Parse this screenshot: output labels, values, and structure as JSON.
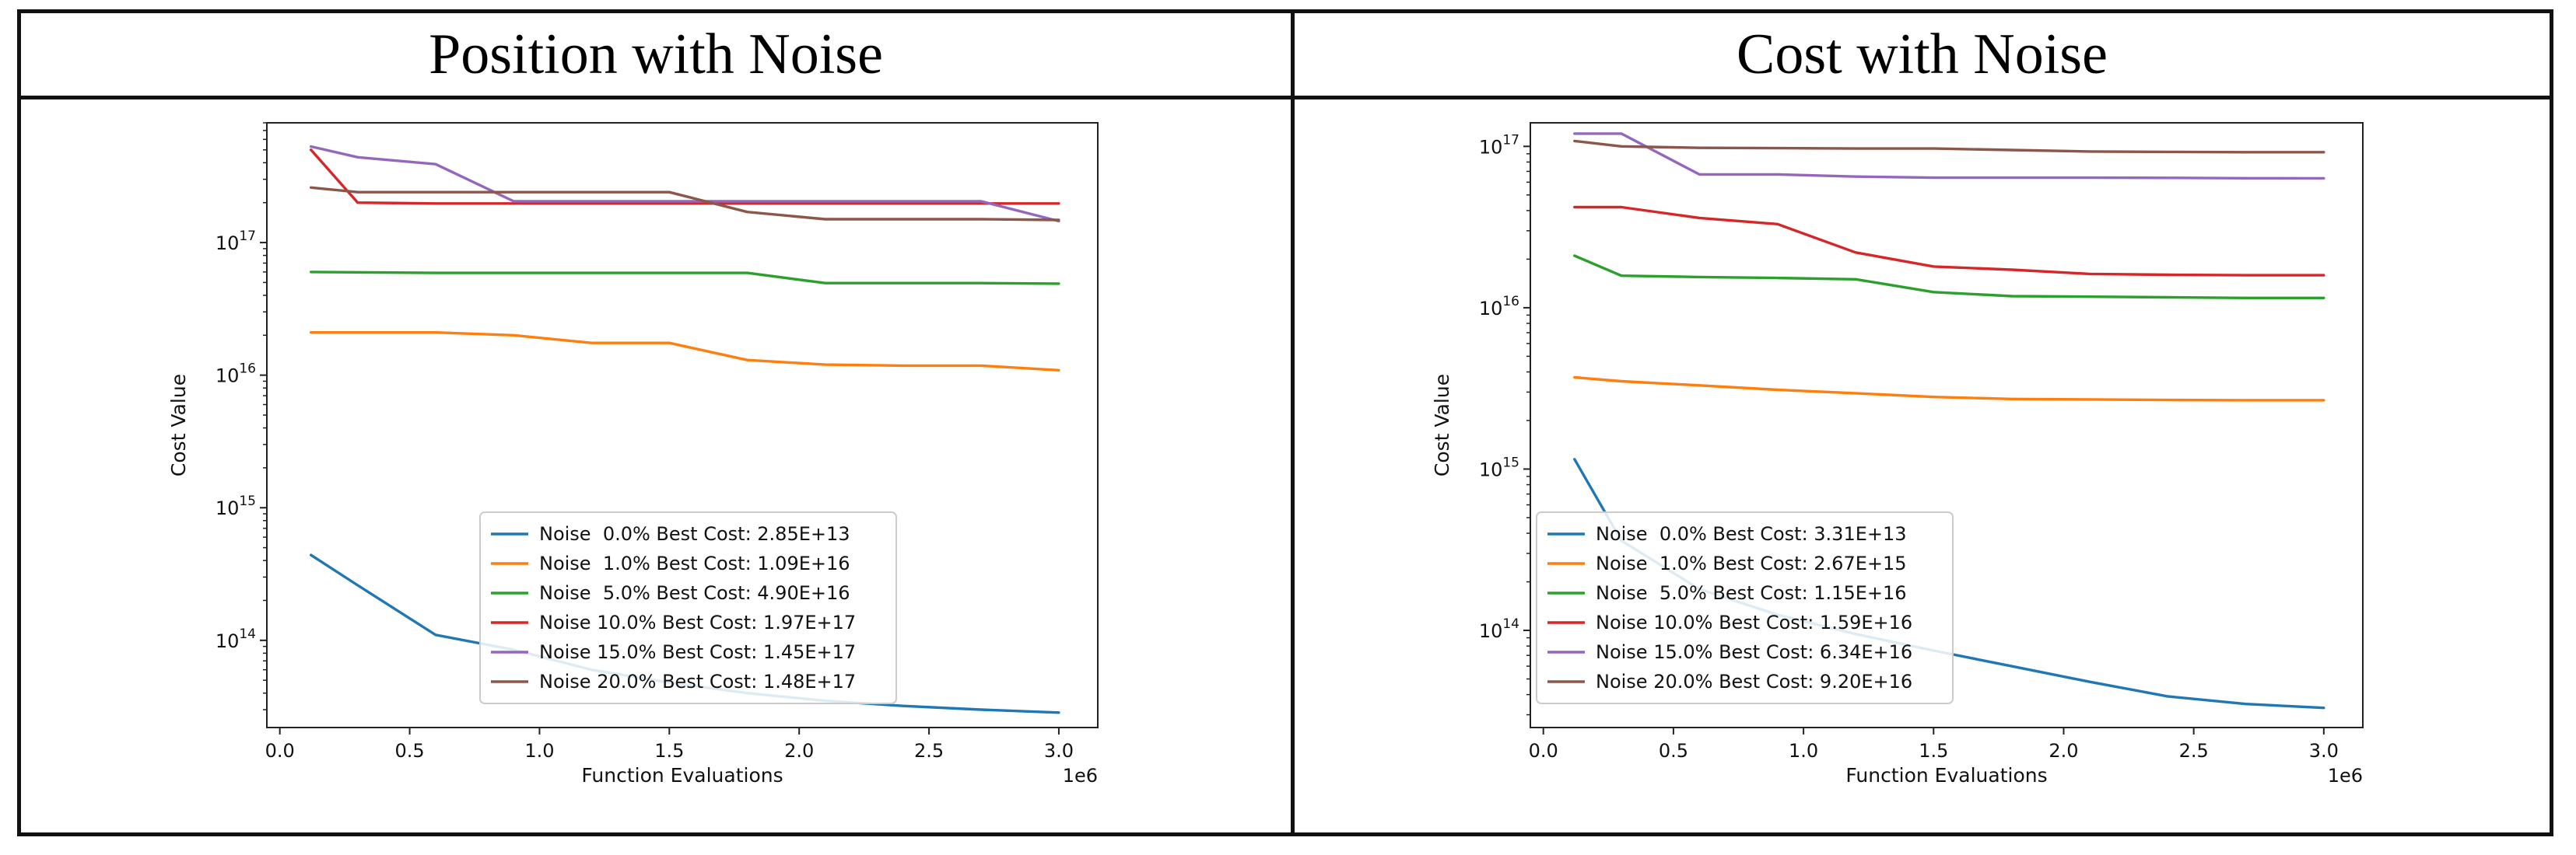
{
  "titles": {
    "left": "Position with Noise",
    "right": "Cost with Noise"
  },
  "chart_data": [
    {
      "type": "line",
      "title": "Position with Noise",
      "xlabel": "Function Evaluations",
      "ylabel": "Cost Value",
      "x_offset_label": "1e6",
      "yscale": "log",
      "xlim": [
        -0.05,
        3.15
      ],
      "ylim": [
        22000000000000.0,
        8e+17
      ],
      "xticks": [
        0.0,
        0.5,
        1.0,
        1.5,
        2.0,
        2.5,
        3.0
      ],
      "xtick_labels": [
        "0.0",
        "0.5",
        "1.0",
        "1.5",
        "2.0",
        "2.5",
        "3.0"
      ],
      "yticks": [
        100000000000000.0,
        1000000000000000.0,
        1e+16,
        1e+17
      ],
      "ytick_labels": [
        {
          "base": "10",
          "exp": "14"
        },
        {
          "base": "10",
          "exp": "15"
        },
        {
          "base": "10",
          "exp": "16"
        },
        {
          "base": "10",
          "exp": "17"
        }
      ],
      "legend_position": "lower center",
      "series": [
        {
          "name": "Noise  0.0% Best Cost: 2.85E+13",
          "color": "#1f77b4",
          "x": [
            0.12,
            0.3,
            0.6,
            0.9,
            1.2,
            1.5,
            1.8,
            2.1,
            2.4,
            2.7,
            3.0
          ],
          "y": [
            440000000000000.0,
            260000000000000.0,
            110000000000000.0,
            85000000000000.0,
            60000000000000.0,
            48000000000000.0,
            40000000000000.0,
            35000000000000.0,
            32000000000000.0,
            30000000000000.0,
            28500000000000.0
          ]
        },
        {
          "name": "Noise  1.0% Best Cost: 1.09E+16",
          "color": "#ff7f0e",
          "x": [
            0.12,
            0.3,
            0.6,
            0.9,
            1.2,
            1.5,
            1.8,
            2.1,
            2.4,
            2.7,
            3.0
          ],
          "y": [
            2.1e+16,
            2.1e+16,
            2.1e+16,
            2e+16,
            1.75e+16,
            1.75e+16,
            1.3e+16,
            1.2e+16,
            1.18e+16,
            1.18e+16,
            1.09e+16
          ]
        },
        {
          "name": "Noise  5.0% Best Cost: 4.90E+16",
          "color": "#2ca02c",
          "x": [
            0.12,
            0.6,
            0.9,
            1.2,
            1.5,
            1.8,
            2.1,
            2.4,
            2.7,
            3.0
          ],
          "y": [
            6e+16,
            5.9e+16,
            5.9e+16,
            5.9e+16,
            5.9e+16,
            5.9e+16,
            4.95e+16,
            4.95e+16,
            4.95e+16,
            4.9e+16
          ]
        },
        {
          "name": "Noise 10.0% Best Cost: 1.97E+17",
          "color": "#d62728",
          "x": [
            0.12,
            0.3,
            0.6,
            0.9,
            1.2,
            1.5,
            1.8,
            2.1,
            2.4,
            2.7,
            3.0
          ],
          "y": [
            5e+17,
            2e+17,
            1.97e+17,
            1.97e+17,
            1.97e+17,
            1.97e+17,
            1.97e+17,
            1.97e+17,
            1.97e+17,
            1.97e+17,
            1.97e+17
          ]
        },
        {
          "name": "Noise 15.0% Best Cost: 1.45E+17",
          "color": "#9467bd",
          "x": [
            0.12,
            0.3,
            0.6,
            0.9,
            1.2,
            1.5,
            1.8,
            2.1,
            2.4,
            2.7,
            3.0
          ],
          "y": [
            5.3e+17,
            4.4e+17,
            3.9e+17,
            2.05e+17,
            2.05e+17,
            2.05e+17,
            2.05e+17,
            2.05e+17,
            2.05e+17,
            2.05e+17,
            1.45e+17
          ]
        },
        {
          "name": "Noise 20.0% Best Cost: 1.48E+17",
          "color": "#8c564b",
          "x": [
            0.12,
            0.3,
            0.6,
            0.9,
            1.2,
            1.5,
            1.8,
            2.1,
            2.4,
            2.7,
            3.0
          ],
          "y": [
            2.6e+17,
            2.4e+17,
            2.4e+17,
            2.4e+17,
            2.4e+17,
            2.4e+17,
            1.7e+17,
            1.5e+17,
            1.5e+17,
            1.5e+17,
            1.48e+17
          ]
        }
      ]
    },
    {
      "type": "line",
      "title": "Cost with Noise",
      "xlabel": "Function Evaluations",
      "ylabel": "Cost Value",
      "x_offset_label": "1e6",
      "yscale": "log",
      "xlim": [
        -0.05,
        3.15
      ],
      "ylim": [
        25000000000000.0,
        1.4e+17
      ],
      "xticks": [
        0.0,
        0.5,
        1.0,
        1.5,
        2.0,
        2.5,
        3.0
      ],
      "xtick_labels": [
        "0.0",
        "0.5",
        "1.0",
        "1.5",
        "2.0",
        "2.5",
        "3.0"
      ],
      "yticks": [
        100000000000000.0,
        1000000000000000.0,
        1e+16,
        1e+17
      ],
      "ytick_labels": [
        {
          "base": "10",
          "exp": "14"
        },
        {
          "base": "10",
          "exp": "15"
        },
        {
          "base": "10",
          "exp": "16"
        },
        {
          "base": "10",
          "exp": "17"
        }
      ],
      "legend_position": "lower left",
      "series": [
        {
          "name": "Noise  0.0% Best Cost: 3.31E+13",
          "color": "#1f77b4",
          "x": [
            0.12,
            0.3,
            0.6,
            0.9,
            1.2,
            1.5,
            1.8,
            2.1,
            2.4,
            2.7,
            3.0
          ],
          "y": [
            1150000000000000.0,
            360000000000000.0,
            180000000000000.0,
            125000000000000.0,
            95000000000000.0,
            75000000000000.0,
            60000000000000.0,
            48000000000000.0,
            39000000000000.0,
            35000000000000.0,
            33100000000000.0
          ]
        },
        {
          "name": "Noise  1.0% Best Cost: 2.67E+15",
          "color": "#ff7f0e",
          "x": [
            0.12,
            0.3,
            0.6,
            0.9,
            1.2,
            1.5,
            1.8,
            2.1,
            2.4,
            2.7,
            3.0
          ],
          "y": [
            3700000000000000.0,
            3500000000000000.0,
            3300000000000000.0,
            3100000000000000.0,
            2950000000000000.0,
            2800000000000000.0,
            2720000000000000.0,
            2700000000000000.0,
            2680000000000000.0,
            2670000000000000.0,
            2670000000000000.0
          ]
        },
        {
          "name": "Noise  5.0% Best Cost: 1.15E+16",
          "color": "#2ca02c",
          "x": [
            0.12,
            0.3,
            0.6,
            0.9,
            1.2,
            1.5,
            1.8,
            2.1,
            2.4,
            2.7,
            3.0
          ],
          "y": [
            2.1e+16,
            1.58e+16,
            1.55e+16,
            1.53e+16,
            1.5e+16,
            1.25e+16,
            1.18e+16,
            1.17e+16,
            1.16e+16,
            1.15e+16,
            1.15e+16
          ]
        },
        {
          "name": "Noise 10.0% Best Cost: 1.59E+16",
          "color": "#d62728",
          "x": [
            0.12,
            0.3,
            0.6,
            0.9,
            1.2,
            1.5,
            1.8,
            2.1,
            2.4,
            2.7,
            3.0
          ],
          "y": [
            4.2e+16,
            4.2e+16,
            3.6e+16,
            3.3e+16,
            2.2e+16,
            1.8e+16,
            1.72e+16,
            1.62e+16,
            1.6e+16,
            1.59e+16,
            1.59e+16
          ]
        },
        {
          "name": "Noise 15.0% Best Cost: 6.34E+16",
          "color": "#9467bd",
          "x": [
            0.12,
            0.3,
            0.6,
            0.9,
            1.2,
            1.5,
            1.8,
            2.1,
            2.4,
            2.7,
            3.0
          ],
          "y": [
            1.2e+17,
            1.2e+17,
            6.7e+16,
            6.7e+16,
            6.5e+16,
            6.4e+16,
            6.4e+16,
            6.4e+16,
            6.38e+16,
            6.35e+16,
            6.34e+16
          ]
        },
        {
          "name": "Noise 20.0% Best Cost: 9.20E+16",
          "color": "#8c564b",
          "x": [
            0.12,
            0.3,
            0.6,
            0.9,
            1.2,
            1.5,
            1.8,
            2.1,
            2.4,
            2.7,
            3.0
          ],
          "y": [
            1.08e+17,
            1e+17,
            9.8e+16,
            9.75e+16,
            9.7e+16,
            9.7e+16,
            9.5e+16,
            9.3e+16,
            9.25e+16,
            9.2e+16,
            9.2e+16
          ]
        }
      ]
    }
  ]
}
